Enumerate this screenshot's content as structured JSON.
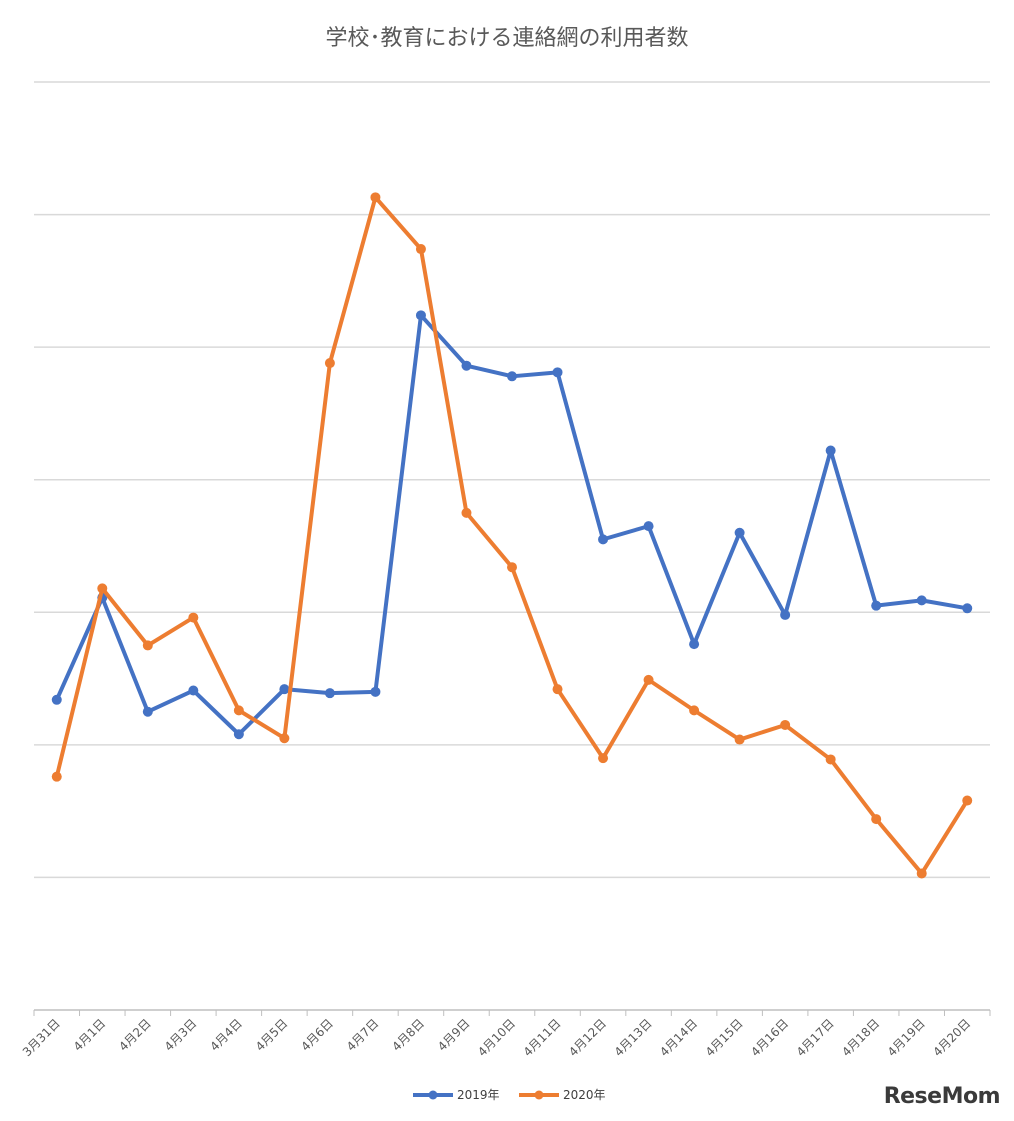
{
  "chart_data": {
    "type": "line",
    "title": "学校･教育における連絡網の利用者数",
    "xlabel": "",
    "ylabel": "",
    "categories": [
      "3月31日",
      "4月1日",
      "4月2日",
      "4月3日",
      "4月4日",
      "4月5日",
      "4月6日",
      "4月7日",
      "4月8日",
      "4月9日",
      "4月10日",
      "4月11日",
      "4月12日",
      "4月13日",
      "4月14日",
      "4月15日",
      "4月16日",
      "4月17日",
      "4月18日",
      "4月19日",
      "4月20日"
    ],
    "ylim": [
      0,
      7
    ],
    "grid": true,
    "legend": "bottom",
    "series": [
      {
        "name": "2019年",
        "color": "#4472C4",
        "values": [
          2.34,
          3.11,
          2.25,
          2.41,
          2.08,
          2.42,
          2.39,
          2.4,
          5.24,
          4.86,
          4.78,
          4.81,
          3.55,
          3.65,
          2.76,
          3.6,
          2.98,
          4.22,
          3.05,
          3.09,
          3.03
        ]
      },
      {
        "name": "2020年",
        "color": "#ED7D31",
        "values": [
          1.76,
          3.18,
          2.75,
          2.96,
          2.26,
          2.05,
          4.88,
          6.13,
          5.74,
          3.75,
          3.34,
          2.42,
          1.9,
          2.49,
          2.26,
          2.04,
          2.15,
          1.89,
          1.44,
          1.03,
          1.58
        ]
      }
    ]
  },
  "logo": {
    "text": "ReseMom"
  }
}
